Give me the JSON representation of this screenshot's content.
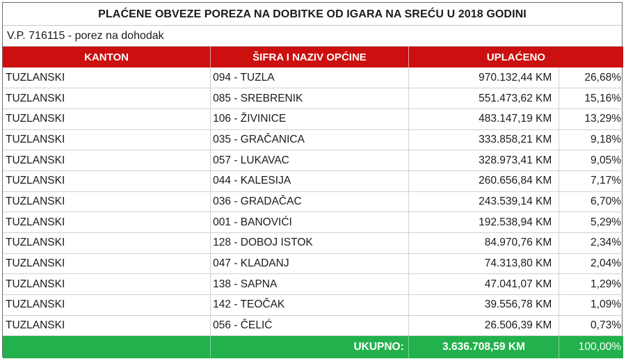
{
  "document": {
    "title": "PLAĆENE OBVEZE POREZA NA DOBITKE OD IGARA NA SREĆU U 2018 GODINI",
    "subtitle": "V.P. 716115 - porez na dohodak"
  },
  "table": {
    "headers": {
      "kanton": "KANTON",
      "opcina": "ŠIFRA I NAZIV OPĆINE",
      "uplaceno": "UPLAĆENO"
    },
    "rows": [
      {
        "kanton": "TUZLANSKI",
        "opcina": "094 - TUZLA",
        "iznos": "970.132,44 KM",
        "udio": "26,68%"
      },
      {
        "kanton": "TUZLANSKI",
        "opcina": "085 - SREBRENIK",
        "iznos": "551.473,62 KM",
        "udio": "15,16%"
      },
      {
        "kanton": "TUZLANSKI",
        "opcina": "106 - ŽIVINICE",
        "iznos": "483.147,19 KM",
        "udio": "13,29%"
      },
      {
        "kanton": "TUZLANSKI",
        "opcina": "035 - GRAČANICA",
        "iznos": "333.858,21 KM",
        "udio": "9,18%"
      },
      {
        "kanton": "TUZLANSKI",
        "opcina": "057 - LUKAVAC",
        "iznos": "328.973,41 KM",
        "udio": "9,05%"
      },
      {
        "kanton": "TUZLANSKI",
        "opcina": "044 - KALESIJA",
        "iznos": "260.656,84 KM",
        "udio": "7,17%"
      },
      {
        "kanton": "TUZLANSKI",
        "opcina": "036 - GRADAČAC",
        "iznos": "243.539,14 KM",
        "udio": "6,70%"
      },
      {
        "kanton": "TUZLANSKI",
        "opcina": "001 - BANOVIĆI",
        "iznos": "192.538,94 KM",
        "udio": "5,29%"
      },
      {
        "kanton": "TUZLANSKI",
        "opcina": "128 - DOBOJ ISTOK",
        "iznos": "84.970,76 KM",
        "udio": "2,34%"
      },
      {
        "kanton": "TUZLANSKI",
        "opcina": "047 - KLADANJ",
        "iznos": "74.313,80 KM",
        "udio": "2,04%"
      },
      {
        "kanton": "TUZLANSKI",
        "opcina": "138 - SAPNA",
        "iznos": "47.041,07 KM",
        "udio": "1,29%"
      },
      {
        "kanton": "TUZLANSKI",
        "opcina": "142 - TEOČAK",
        "iznos": "39.556,78 KM",
        "udio": "1,09%"
      },
      {
        "kanton": "TUZLANSKI",
        "opcina": "056 - ČELIĆ",
        "iznos": "26.506,39 KM",
        "udio": "0,73%"
      }
    ],
    "total": {
      "label": "UKUPNO:",
      "iznos": "3.636.708,59 KM",
      "udio": "100,00%"
    }
  },
  "colors": {
    "header_bg": "#cc0f0f",
    "total_bg": "#22b14c"
  }
}
